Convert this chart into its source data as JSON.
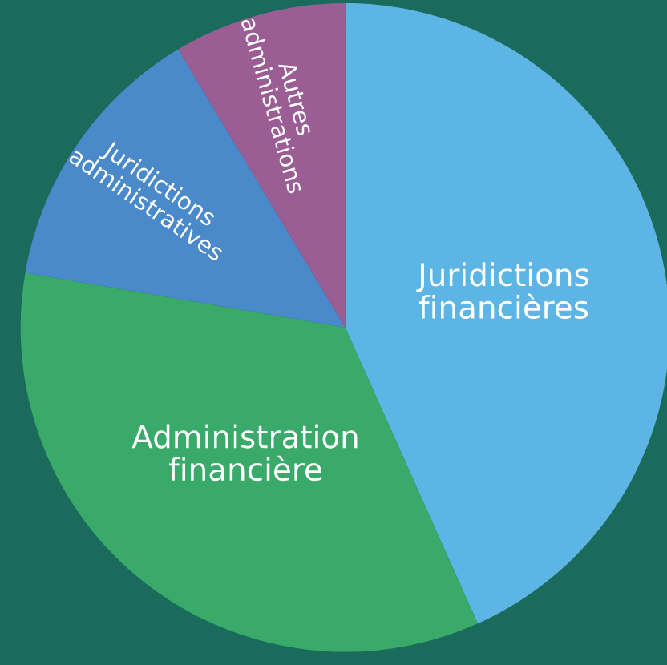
{
  "chart_data": {
    "type": "pie",
    "categories": [
      "Juridictions\nfinancières",
      "Administration\nfinancière",
      "Juridictions\nadministratives",
      "Autres\nadministrations"
    ],
    "values": [
      43.3,
      34.4,
      13.7,
      8.6
    ],
    "colors": [
      "#5db5e5",
      "#3aaa6a",
      "#4a8acb",
      "#9a5e95"
    ],
    "legend": false
  }
}
